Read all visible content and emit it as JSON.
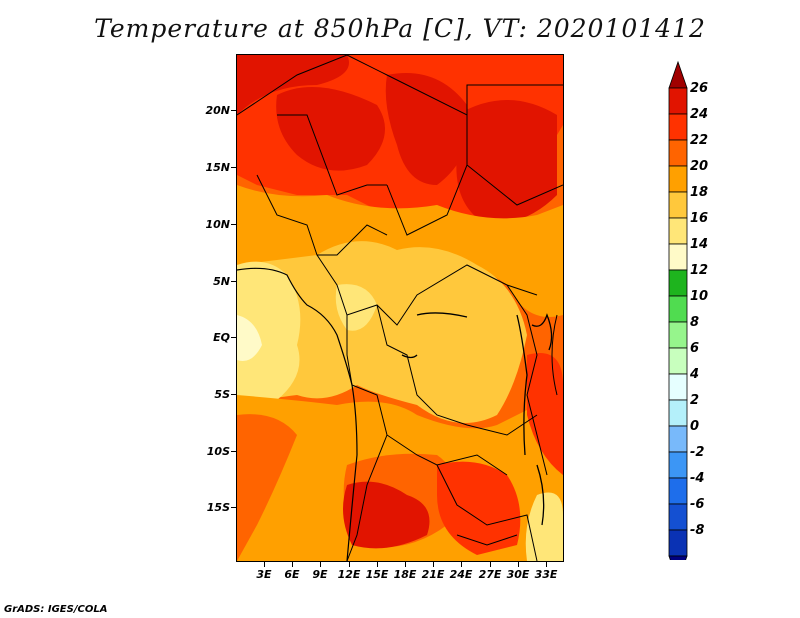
{
  "title": "Temperature at 850hPa [C], VT: 2020101412",
  "lat_labels": [
    "20N",
    "15N",
    "10N",
    "5N",
    "EQ",
    "5S",
    "10S",
    "15S"
  ],
  "lon_labels": [
    "3E",
    "6E",
    "9E",
    "12E",
    "15E",
    "18E",
    "21E",
    "24E",
    "27E",
    "30E",
    "33E"
  ],
  "colorbar": {
    "labels": [
      "26",
      "24",
      "22",
      "20",
      "18",
      "16",
      "14",
      "12",
      "10",
      "8",
      "6",
      "4",
      "2",
      "0",
      "-2",
      "-4",
      "-6",
      "-8"
    ],
    "colors": [
      "#a00000",
      "#e11400",
      "#ff3200",
      "#ff6400",
      "#ffa000",
      "#ffc83c",
      "#ffe678",
      "#fffac8",
      "#1eb41e",
      "#50dc50",
      "#96f58c",
      "#c8ffbe",
      "#e6ffff",
      "#b4f0fa",
      "#78b9fa",
      "#3c96f5",
      "#1e6eeb",
      "#1450d2",
      "#0a32b4",
      "#000080"
    ]
  },
  "credit": "GrADS: IGES/COLA"
}
